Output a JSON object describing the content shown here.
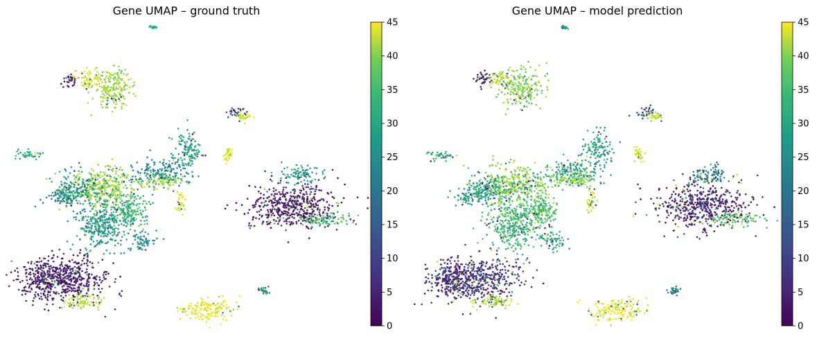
{
  "chart_data": [
    {
      "type": "scatter",
      "title": "Gene UMAP – ground truth",
      "colorbar": {
        "colormap": "viridis",
        "vmin": 0,
        "vmax": 45,
        "ticks": [
          0,
          5,
          10,
          15,
          20,
          25,
          30,
          35,
          40,
          45
        ]
      },
      "axes_visible": false,
      "grid": false,
      "clusters": [
        {
          "x": 5.5,
          "y": 15.5,
          "sx": 0.6,
          "sy": 0.9,
          "value": 38
        },
        {
          "x": 3.2,
          "y": 16.2,
          "sx": 0.25,
          "sy": 0.3,
          "value": 2
        },
        {
          "x": 4.2,
          "y": 16.2,
          "sx": 0.4,
          "sy": 0.4,
          "value": 44
        },
        {
          "x": 12.5,
          "y": 13.2,
          "sx": 0.35,
          "sy": 0.25,
          "value": 10
        },
        {
          "x": 12.9,
          "y": 12.9,
          "sx": 0.25,
          "sy": 0.2,
          "value": 42
        },
        {
          "x": 12.0,
          "y": 9.6,
          "sx": 0.15,
          "sy": 0.3,
          "value": 43
        },
        {
          "x": 0.8,
          "y": 9.5,
          "sx": 0.4,
          "sy": 0.25,
          "value": 28
        },
        {
          "x": 5.0,
          "y": 6.8,
          "sx": 1.0,
          "sy": 0.9,
          "value": 38
        },
        {
          "x": 2.8,
          "y": 5.8,
          "sx": 0.6,
          "sy": 0.4,
          "value": 20
        },
        {
          "x": 3.6,
          "y": 6.6,
          "sx": 0.6,
          "sy": 0.6,
          "value": 26
        },
        {
          "x": 8.2,
          "y": 7.9,
          "sx": 0.8,
          "sy": 0.6,
          "value": 22
        },
        {
          "x": 8.3,
          "y": 7.2,
          "sx": 0.6,
          "sy": 0.3,
          "value": 38
        },
        {
          "x": 9.7,
          "y": 10.0,
          "sx": 0.4,
          "sy": 0.8,
          "value": 26
        },
        {
          "x": 9.3,
          "y": 5.3,
          "sx": 0.15,
          "sy": 0.6,
          "value": 43
        },
        {
          "x": 5.0,
          "y": 3.5,
          "sx": 0.8,
          "sy": 1.2,
          "value": 25
        },
        {
          "x": 6.5,
          "y": 4.5,
          "sx": 0.5,
          "sy": 0.8,
          "value": 30
        },
        {
          "x": 7.2,
          "y": 1.8,
          "sx": 0.4,
          "sy": 0.4,
          "value": 22
        },
        {
          "x": 3.0,
          "y": -1.5,
          "sx": 1.2,
          "sy": 1.0,
          "value": 4
        },
        {
          "x": 1.5,
          "y": -1.5,
          "sx": 0.6,
          "sy": 0.8,
          "value": 3
        },
        {
          "x": 3.8,
          "y": -3.5,
          "sx": 0.6,
          "sy": 0.3,
          "value": 40
        },
        {
          "x": 10.8,
          "y": -4.2,
          "sx": 0.8,
          "sy": 0.5,
          "value": 44
        },
        {
          "x": 14.0,
          "y": -2.5,
          "sx": 0.15,
          "sy": 0.15,
          "value": 22
        },
        {
          "x": 15.5,
          "y": 5.0,
          "sx": 1.3,
          "sy": 1.0,
          "value": 3
        },
        {
          "x": 17.4,
          "y": 3.8,
          "sx": 0.8,
          "sy": 0.3,
          "value": 32
        },
        {
          "x": 16.0,
          "y": 7.8,
          "sx": 0.6,
          "sy": 0.4,
          "value": 26
        },
        {
          "x": 7.8,
          "y": 20.8,
          "sx": 0.1,
          "sy": 0.05,
          "value": 28
        }
      ],
      "noise_fraction": 0.1
    },
    {
      "type": "scatter",
      "title": "Gene UMAP – model prediction",
      "colorbar": {
        "colormap": "viridis",
        "vmin": 0,
        "vmax": 45,
        "ticks": [
          0,
          5,
          10,
          15,
          20,
          25,
          30,
          35,
          40,
          45
        ]
      },
      "axes_visible": false,
      "grid": false,
      "clusters": [
        {
          "x": 5.5,
          "y": 15.5,
          "sx": 0.6,
          "sy": 0.9,
          "value": 36
        },
        {
          "x": 3.2,
          "y": 16.2,
          "sx": 0.25,
          "sy": 0.3,
          "value": 3
        },
        {
          "x": 4.2,
          "y": 16.2,
          "sx": 0.4,
          "sy": 0.4,
          "value": 41
        },
        {
          "x": 12.5,
          "y": 13.2,
          "sx": 0.35,
          "sy": 0.25,
          "value": 12
        },
        {
          "x": 12.9,
          "y": 12.9,
          "sx": 0.25,
          "sy": 0.2,
          "value": 42
        },
        {
          "x": 12.0,
          "y": 9.6,
          "sx": 0.15,
          "sy": 0.3,
          "value": 43
        },
        {
          "x": 0.8,
          "y": 9.5,
          "sx": 0.4,
          "sy": 0.25,
          "value": 28
        },
        {
          "x": 5.0,
          "y": 6.8,
          "sx": 1.0,
          "sy": 0.9,
          "value": 37
        },
        {
          "x": 2.8,
          "y": 5.8,
          "sx": 0.6,
          "sy": 0.4,
          "value": 24
        },
        {
          "x": 3.6,
          "y": 6.6,
          "sx": 0.6,
          "sy": 0.6,
          "value": 28
        },
        {
          "x": 8.2,
          "y": 7.9,
          "sx": 0.8,
          "sy": 0.6,
          "value": 28
        },
        {
          "x": 8.3,
          "y": 7.2,
          "sx": 0.6,
          "sy": 0.3,
          "value": 38
        },
        {
          "x": 9.7,
          "y": 10.0,
          "sx": 0.4,
          "sy": 0.8,
          "value": 26
        },
        {
          "x": 9.3,
          "y": 5.3,
          "sx": 0.15,
          "sy": 0.6,
          "value": 43
        },
        {
          "x": 5.0,
          "y": 3.5,
          "sx": 0.8,
          "sy": 1.2,
          "value": 30
        },
        {
          "x": 6.5,
          "y": 4.5,
          "sx": 0.5,
          "sy": 0.8,
          "value": 32
        },
        {
          "x": 7.2,
          "y": 1.8,
          "sx": 0.4,
          "sy": 0.4,
          "value": 28
        },
        {
          "x": 3.0,
          "y": -1.5,
          "sx": 1.2,
          "sy": 1.0,
          "value": 6
        },
        {
          "x": 1.5,
          "y": -1.5,
          "sx": 0.6,
          "sy": 0.8,
          "value": 5
        },
        {
          "x": 3.8,
          "y": -3.5,
          "sx": 0.6,
          "sy": 0.3,
          "value": 40
        },
        {
          "x": 10.8,
          "y": -4.2,
          "sx": 0.8,
          "sy": 0.5,
          "value": 44
        },
        {
          "x": 14.0,
          "y": -2.5,
          "sx": 0.15,
          "sy": 0.15,
          "value": 22
        },
        {
          "x": 15.5,
          "y": 5.0,
          "sx": 1.3,
          "sy": 1.0,
          "value": 4
        },
        {
          "x": 17.4,
          "y": 3.8,
          "sx": 0.8,
          "sy": 0.3,
          "value": 32
        },
        {
          "x": 16.0,
          "y": 7.8,
          "sx": 0.6,
          "sy": 0.4,
          "value": 20
        },
        {
          "x": 7.8,
          "y": 20.8,
          "sx": 0.1,
          "sy": 0.05,
          "value": 28
        }
      ],
      "noise_fraction": 0.2
    }
  ]
}
